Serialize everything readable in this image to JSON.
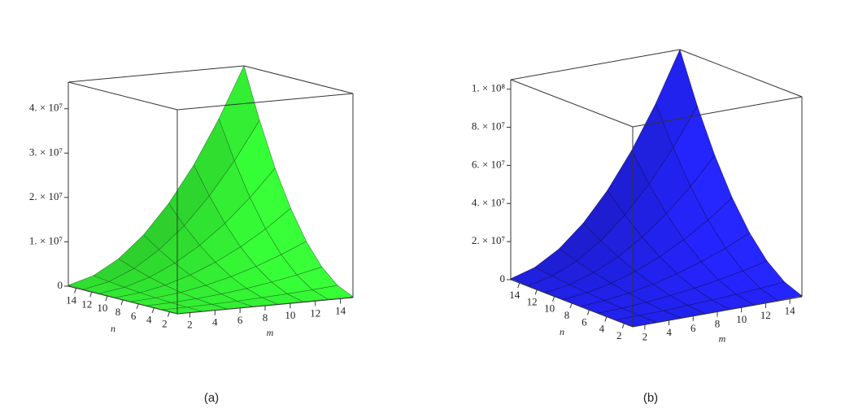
{
  "chart_data": [
    {
      "type": "surface",
      "caption": "(a)",
      "color": "#33ee33",
      "stroke": "#1f6a1f",
      "xlabel": "m",
      "ylabel": "n",
      "xlim": [
        1,
        15
      ],
      "ylim": [
        1,
        15
      ],
      "zlim": [
        0,
        46000000
      ],
      "xticks": [
        2,
        4,
        6,
        8,
        10,
        12,
        14
      ],
      "yticks": [
        2,
        4,
        6,
        8,
        10,
        12,
        14
      ],
      "zticks": [
        0,
        {
          "value": 10000000,
          "label": "1. × 10⁷"
        },
        {
          "value": 20000000,
          "label": "2. × 10⁷"
        },
        {
          "value": 30000000,
          "label": "3. × 10⁷"
        },
        {
          "value": 40000000,
          "label": "4. × 10⁷"
        }
      ],
      "x": [
        1,
        3,
        5,
        7,
        9,
        11,
        13,
        15
      ],
      "y": [
        1,
        3,
        5,
        7,
        9,
        11,
        13,
        15
      ],
      "z": [
        [
          900,
          8200,
          22700,
          44500,
          73600,
          110000,
          154000,
          204000
        ],
        [
          8200,
          73600,
          204000,
          400000,
          662000,
          990000,
          1380000,
          1840000
        ],
        [
          22700,
          204000,
          568000,
          1110000,
          1840000,
          2750000,
          3840000,
          5110000
        ],
        [
          44500,
          400000,
          1110000,
          2180000,
          3610000,
          5390000,
          7530000,
          10000000
        ],
        [
          73600,
          662000,
          1840000,
          3610000,
          5960000,
          8900000,
          12400000,
          16560000
        ],
        [
          110000,
          990000,
          2750000,
          5390000,
          8900000,
          13300000,
          18600000,
          24700000
        ],
        [
          154000,
          1380000,
          3840000,
          7530000,
          12400000,
          18600000,
          26000000,
          34600000
        ],
        [
          204000,
          1840000,
          5110000,
          10000000,
          16560000,
          24700000,
          34600000,
          46000000
        ]
      ]
    },
    {
      "type": "surface",
      "caption": "(b)",
      "color": "#2222ee",
      "stroke": "#101060",
      "xlabel": "m",
      "ylabel": "n",
      "xlim": [
        1,
        15
      ],
      "ylim": [
        1,
        15
      ],
      "zlim": [
        0,
        105000000
      ],
      "xticks": [
        2,
        4,
        6,
        8,
        10,
        12,
        14
      ],
      "yticks": [
        2,
        4,
        6,
        8,
        10,
        12,
        14
      ],
      "zticks": [
        0,
        {
          "value": 20000000,
          "label": "2. × 10⁷"
        },
        {
          "value": 40000000,
          "label": "4. × 10⁷"
        },
        {
          "value": 60000000,
          "label": "6. × 10⁷"
        },
        {
          "value": 80000000,
          "label": "8. × 10⁷"
        },
        {
          "value": 100000000,
          "label": "1. × 10⁸"
        }
      ],
      "x": [
        1,
        3,
        5,
        7,
        9,
        11,
        13,
        15
      ],
      "y": [
        1,
        3,
        5,
        7,
        9,
        11,
        13,
        15
      ],
      "z": [
        [
          2100,
          18700,
          51800,
          101500,
          168000,
          251000,
          350000,
          467000
        ],
        [
          18700,
          168000,
          467000,
          915000,
          1510000,
          2260000,
          3160000,
          4200000
        ],
        [
          51800,
          467000,
          1300000,
          2540000,
          4200000,
          6270000,
          8760000,
          11670000
        ],
        [
          101500,
          915000,
          2540000,
          4980000,
          8240000,
          12300000,
          17200000,
          22870000
        ],
        [
          168000,
          1510000,
          4200000,
          8240000,
          13600000,
          20300000,
          28400000,
          37800000
        ],
        [
          251000,
          2260000,
          6270000,
          12300000,
          20300000,
          30400000,
          42400000,
          56500000
        ],
        [
          350000,
          3160000,
          8760000,
          17200000,
          28400000,
          42400000,
          59300000,
          78900000
        ],
        [
          467000,
          4200000,
          11670000,
          22870000,
          37800000,
          56500000,
          78900000,
          105000000
        ]
      ]
    }
  ]
}
